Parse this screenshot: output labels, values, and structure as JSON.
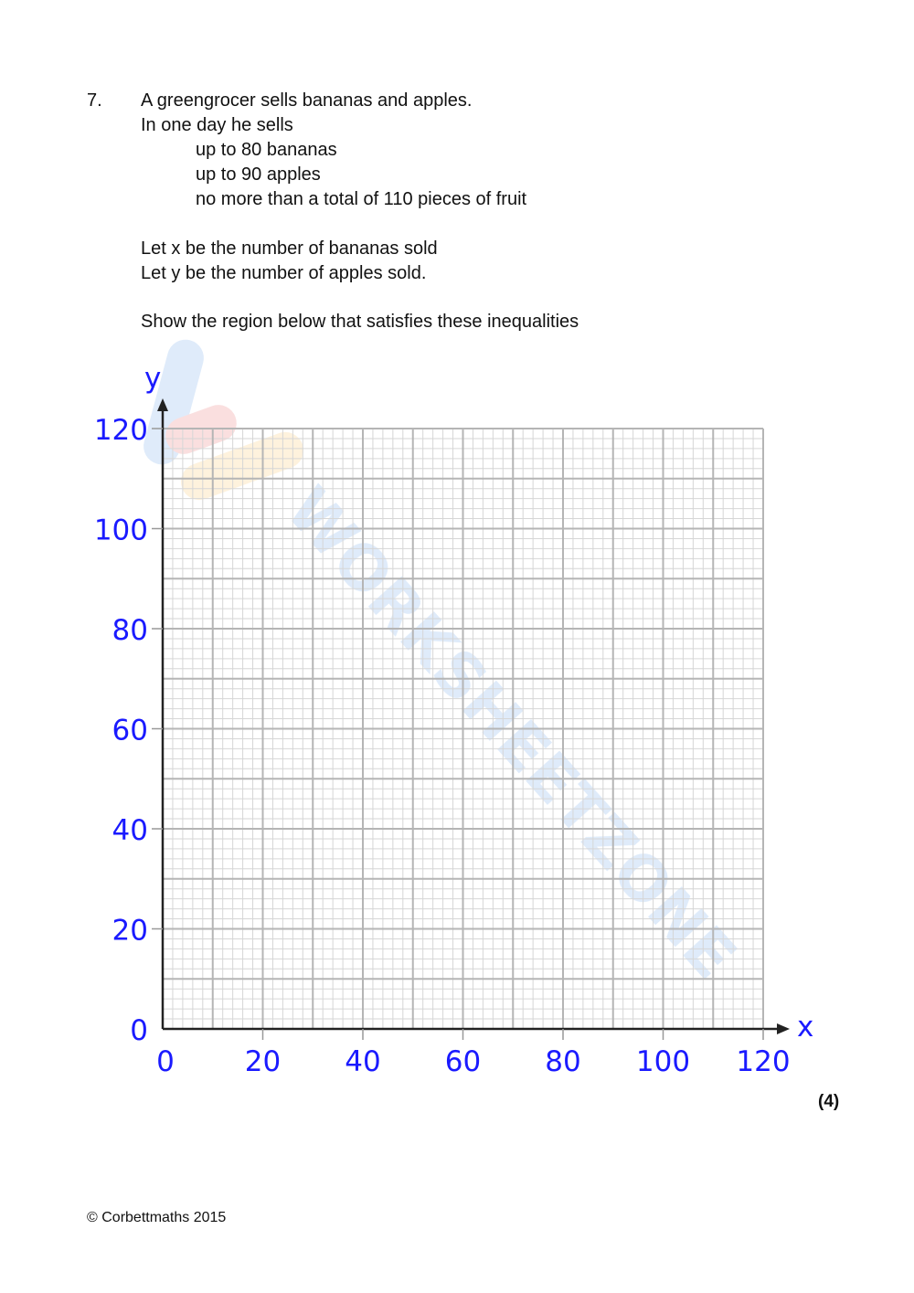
{
  "question": {
    "number": "7.",
    "lines": [
      "A greengrocer sells bananas and apples.",
      "In one day he sells",
      "up to 80 bananas",
      "up to 90 apples",
      "no more than a total of 110 pieces of fruit",
      "Let x be the number of bananas sold",
      "Let y be the number of apples sold.",
      "Show the region below that satisfies these inequalities"
    ],
    "marks": "(4)"
  },
  "footer": {
    "copyright": "© Corbettmaths 2015"
  },
  "watermark": "WORKSHEETZONE",
  "chart_data": {
    "type": "scatter",
    "title": "",
    "xlabel": "x",
    "ylabel": "y",
    "xlim": [
      0,
      120
    ],
    "ylim": [
      0,
      120
    ],
    "x_ticks": [
      "0",
      "20",
      "40",
      "60",
      "80",
      "100",
      "120"
    ],
    "y_ticks": [
      "0",
      "20",
      "40",
      "60",
      "80",
      "100",
      "120"
    ],
    "grid": true,
    "grid_major": 10,
    "grid_minor": 2,
    "points": [],
    "colors": {
      "tick_labels": "#1a1aff",
      "grid": "#bdbdbd",
      "axes": "#222222"
    }
  }
}
